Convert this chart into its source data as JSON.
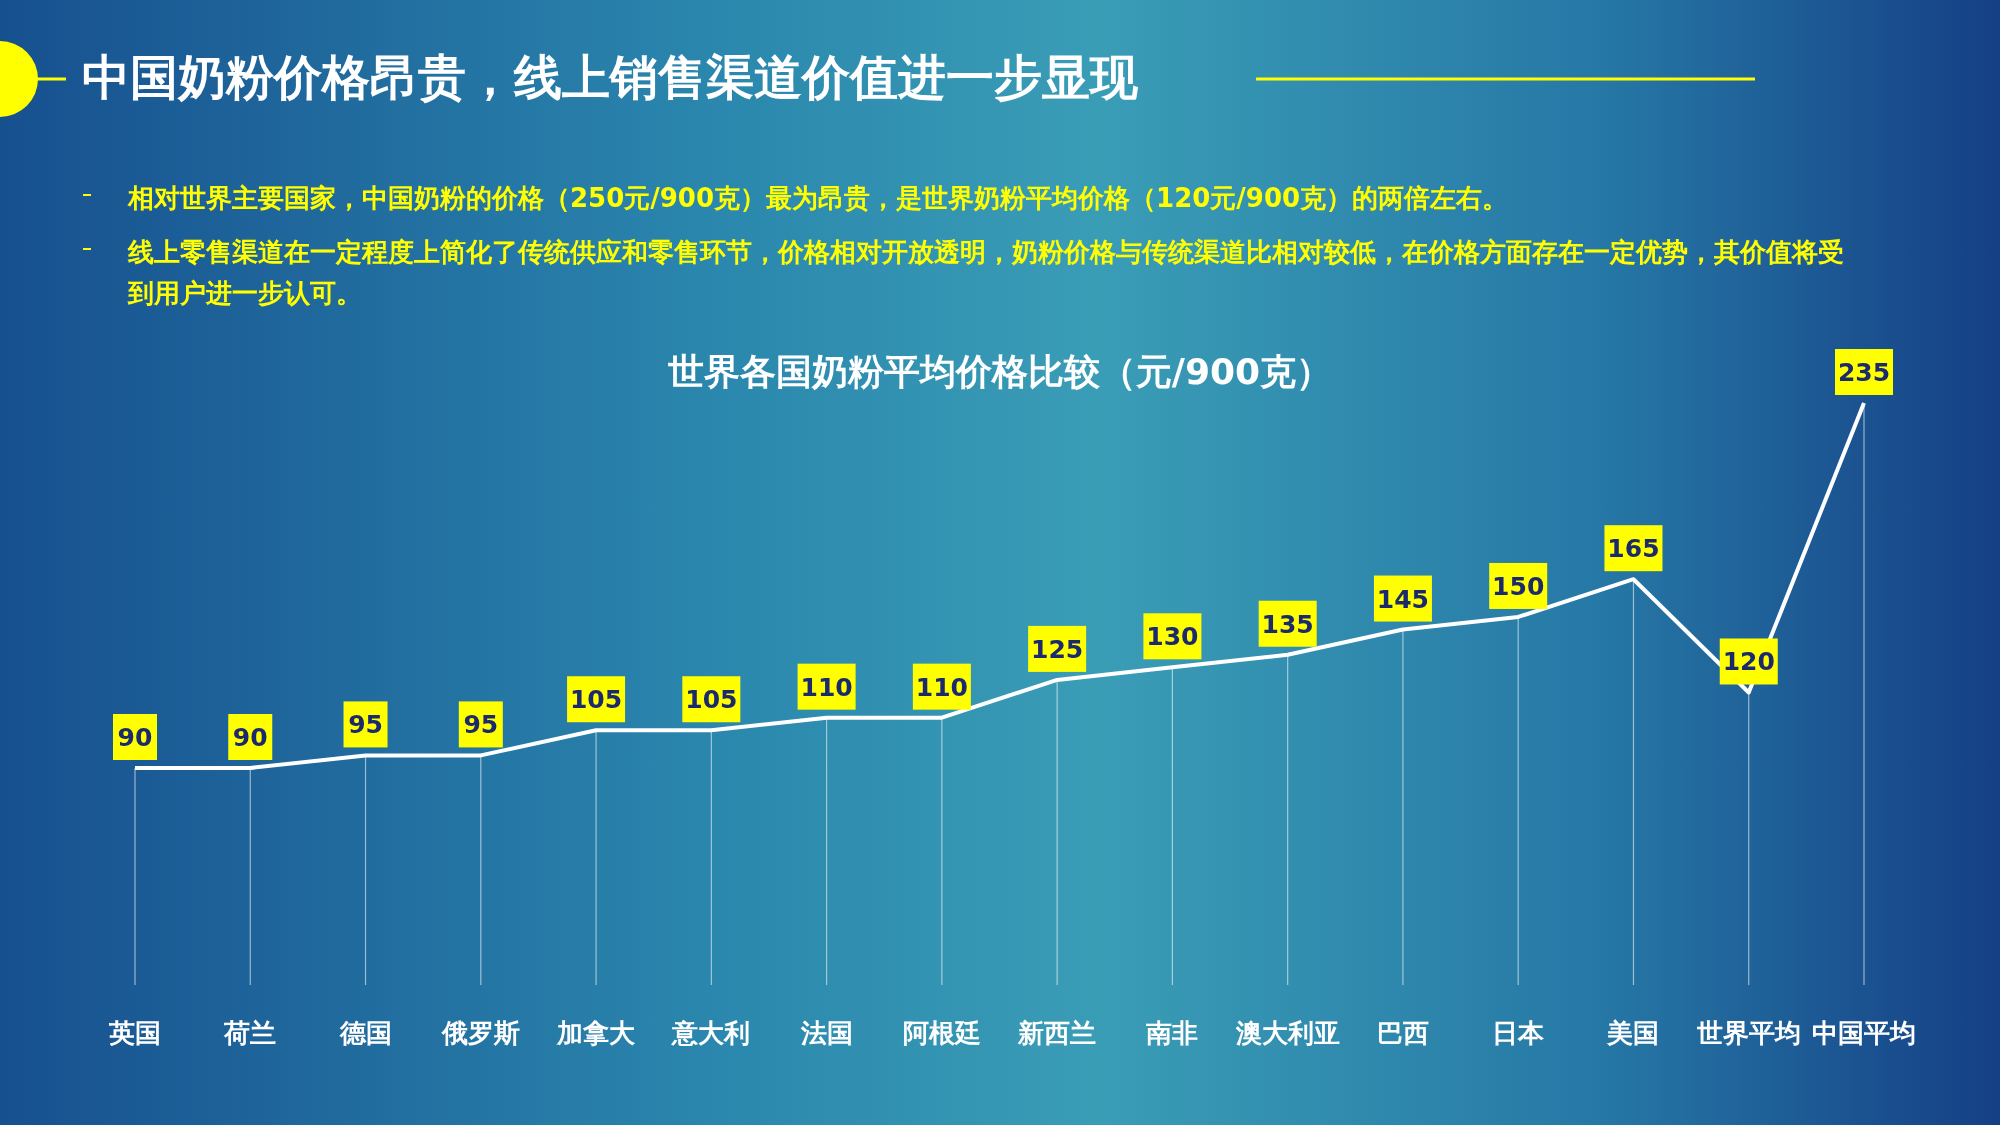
{
  "chart_data": {
    "type": "line",
    "title": "中国奶粉价格昂贵，线上销售渠道价值进一步显现",
    "subtitle": "世界各国奶粉平均价格比较（元/900克）",
    "annotations": [
      "相对世界主要国家，中国奶粉的价格（250元/900克）最为昂贵，是世界奶粉平均价格（120元/900克）的两倍左右。",
      "线上零售渠道在一定程度上简化了传统供应和零售环节，价格相对开放透明，奶粉价格与传统渠道比相对较低，在价格方面存在一定优势，其价值将受到用户进一步认可。"
    ],
    "categories": [
      "英国",
      "荷兰",
      "德国",
      "俄罗斯",
      "加拿大",
      "意大利",
      "法国",
      "阿根廷",
      "新西兰",
      "南非",
      "澳大利亚",
      "巴西",
      "日本",
      "美国",
      "世界平均",
      "中国平均"
    ],
    "series": [
      {
        "color": "#ffffff",
        "values": [
          90,
          90,
          95,
          95,
          105,
          105,
          110,
          110,
          125,
          130,
          135,
          145,
          150,
          165,
          120,
          235
        ]
      }
    ],
    "data_labels": true,
    "line_style": "solid",
    "grid": "x"
  }
}
